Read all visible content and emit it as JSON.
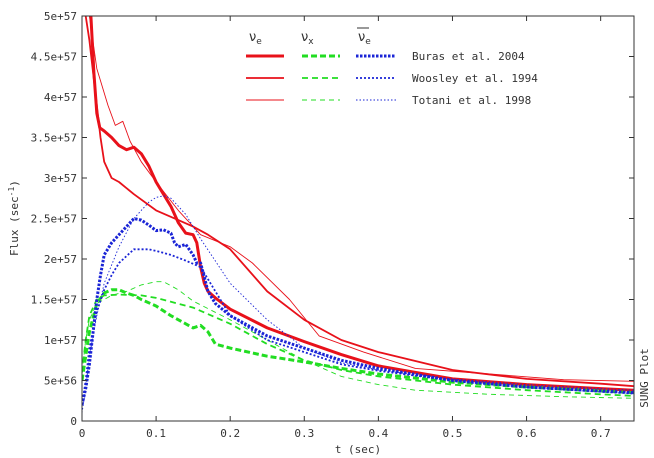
{
  "chart_data": {
    "type": "line",
    "xlabel": "t (sec)",
    "ylabel": "Flux (sec^-1)",
    "ylabel_base": "Flux (sec",
    "ylabel_exp": "-1",
    "ylabel_close": ")",
    "xlim": [
      0,
      0.745
    ],
    "ylim": [
      0,
      5e+57
    ],
    "x_ticks": [
      {
        "value": 0,
        "label": "0"
      },
      {
        "value": 0.1,
        "label": "0.1"
      },
      {
        "value": 0.2,
        "label": "0.2"
      },
      {
        "value": 0.3,
        "label": "0.3"
      },
      {
        "value": 0.4,
        "label": "0.4"
      },
      {
        "value": 0.5,
        "label": "0.5"
      },
      {
        "value": 0.6,
        "label": "0.6"
      },
      {
        "value": 0.7,
        "label": "0.7"
      }
    ],
    "y_ticks": [
      {
        "value": 0,
        "label": "0"
      },
      {
        "value": 5e+56,
        "label": "5e+56"
      },
      {
        "value": 1e+57,
        "label": "1e+57"
      },
      {
        "value": 1.5e+57,
        "label": "1.5e+57"
      },
      {
        "value": 2e+57,
        "label": "2e+57"
      },
      {
        "value": 2.5e+57,
        "label": "2.5e+57"
      },
      {
        "value": 3e+57,
        "label": "3e+57"
      },
      {
        "value": 3.5e+57,
        "label": "3.5e+57"
      },
      {
        "value": 4e+57,
        "label": "4e+57"
      },
      {
        "value": 4.5e+57,
        "label": "4.5e+57"
      },
      {
        "value": 5e+57,
        "label": "5e+57"
      }
    ],
    "grid": false,
    "legend_position": "top-right",
    "legend_headers": {
      "nu_e": {
        "symbol": "ν",
        "sub": "e"
      },
      "nu_x": {
        "symbol": "ν",
        "sub": "x"
      },
      "nu_e_bar": {
        "symbol": "ν",
        "sub": "e"
      }
    },
    "legend_rows": [
      {
        "label": "Buras et al. 2004",
        "stroke_width": 3
      },
      {
        "label": "Woosley et al. 1994",
        "stroke_width": 1.8
      },
      {
        "label": "Totani et al. 1998",
        "stroke_width": 0.9
      }
    ],
    "watermark": "SUNG Plot",
    "colors": {
      "nu_e": "#e8111a",
      "nu_x": "#22dd22",
      "nu_e_bar": "#1a24d6",
      "frame": "#333333"
    },
    "series": [
      {
        "name": "Buras et al. 2004",
        "flavor": "nu_e",
        "style": "solid",
        "width": 3,
        "x": [
          0.012,
          0.016,
          0.02,
          0.024,
          0.03,
          0.04,
          0.05,
          0.06,
          0.07,
          0.08,
          0.09,
          0.1,
          0.11,
          0.12,
          0.13,
          0.14,
          0.15,
          0.155,
          0.16,
          0.165,
          0.17,
          0.18,
          0.2,
          0.25,
          0.3,
          0.35,
          0.4,
          0.5,
          0.6,
          0.7,
          0.745
        ],
        "y": [
          5e+57,
          4.3e+57,
          3.8e+57,
          3.62e+57,
          3.58e+57,
          3.5e+57,
          3.4e+57,
          3.35e+57,
          3.38e+57,
          3.3e+57,
          3.15e+57,
          2.95e+57,
          2.8e+57,
          2.65e+57,
          2.45e+57,
          2.32e+57,
          2.3e+57,
          2.2e+57,
          1.9e+57,
          1.7e+57,
          1.6e+57,
          1.52e+57,
          1.38e+57,
          1.15e+57,
          9.8e+56,
          8.2e+56,
          6.8e+56,
          5.2e+56,
          4.5e+56,
          4e+56,
          3.8e+56
        ]
      },
      {
        "name": "Woosley et al. 1994",
        "flavor": "nu_e",
        "style": "solid",
        "width": 1.8,
        "x": [
          0.005,
          0.01,
          0.015,
          0.02,
          0.025,
          0.03,
          0.04,
          0.05,
          0.07,
          0.1,
          0.13,
          0.15,
          0.17,
          0.2,
          0.25,
          0.3,
          0.35,
          0.4,
          0.5,
          0.6,
          0.7,
          0.745
        ],
        "y": [
          5e+57,
          4.7e+57,
          4.3e+57,
          3.9e+57,
          3.5e+57,
          3.2e+57,
          3e+57,
          2.95e+57,
          2.8e+57,
          2.6e+57,
          2.48e+57,
          2.4e+57,
          2.3e+57,
          2.12e+57,
          1.6e+57,
          1.25e+57,
          1e+57,
          8.5e+56,
          6.3e+56,
          5.2e+56,
          4.6e+56,
          4.3e+56
        ]
      },
      {
        "name": "Totani et al. 1998",
        "flavor": "nu_e",
        "style": "solid",
        "width": 0.9,
        "x": [
          0.01,
          0.02,
          0.025,
          0.035,
          0.045,
          0.055,
          0.065,
          0.08,
          0.1,
          0.13,
          0.16,
          0.2,
          0.23,
          0.28,
          0.32,
          0.38,
          0.45,
          0.55,
          0.65,
          0.745
        ],
        "y": [
          5e+57,
          4.35e+57,
          4.2e+57,
          3.9e+57,
          3.65e+57,
          3.7e+57,
          3.45e+57,
          3.2e+57,
          2.95e+57,
          2.6e+57,
          2.3e+57,
          2.15e+57,
          1.95e+57,
          1.5e+57,
          1.05e+57,
          8.5e+56,
          6.5e+56,
          5.8e+56,
          5.1e+56,
          4.9e+56
        ]
      },
      {
        "name": "Buras et al. 2004",
        "flavor": "nu_x",
        "style": "dashed",
        "width": 3,
        "x": [
          0,
          0.005,
          0.01,
          0.02,
          0.03,
          0.04,
          0.05,
          0.06,
          0.07,
          0.08,
          0.1,
          0.12,
          0.14,
          0.15,
          0.16,
          0.17,
          0.18,
          0.2,
          0.25,
          0.3,
          0.35,
          0.4,
          0.5,
          0.6,
          0.7,
          0.745
        ],
        "y": [
          5e+56,
          8e+56,
          1.1e+57,
          1.45e+57,
          1.58e+57,
          1.62e+57,
          1.62e+57,
          1.58e+57,
          1.55e+57,
          1.5e+57,
          1.42e+57,
          1.3e+57,
          1.2e+57,
          1.15e+57,
          1.18e+57,
          1.1e+57,
          9.5e+56,
          9e+56,
          8e+56,
          7.3e+56,
          6.5e+56,
          5.8e+56,
          4.8e+56,
          4.2e+56,
          3.7e+56,
          3.5e+56
        ]
      },
      {
        "name": "Woosley et al. 1994",
        "flavor": "nu_x",
        "style": "dashed",
        "width": 1.8,
        "x": [
          0,
          0.005,
          0.01,
          0.02,
          0.03,
          0.05,
          0.08,
          0.1,
          0.15,
          0.2,
          0.25,
          0.3,
          0.35,
          0.4,
          0.5,
          0.6,
          0.7,
          0.745
        ],
        "y": [
          6e+56,
          1e+57,
          1.3e+57,
          1.5e+57,
          1.55e+57,
          1.56e+57,
          1.55e+57,
          1.52e+57,
          1.4e+57,
          1.2e+57,
          9.5e+56,
          7.5e+56,
          6.3e+56,
          5.5e+56,
          4.5e+56,
          3.8e+56,
          3.3e+56,
          3.1e+56
        ]
      },
      {
        "name": "Totani et al. 1998",
        "flavor": "nu_x",
        "style": "dashed",
        "width": 0.9,
        "x": [
          0,
          0.005,
          0.01,
          0.02,
          0.04,
          0.06,
          0.08,
          0.1,
          0.11,
          0.13,
          0.15,
          0.2,
          0.25,
          0.3,
          0.35,
          0.4,
          0.45,
          0.55,
          0.65,
          0.745
        ],
        "y": [
          6e+56,
          1e+57,
          1.25e+57,
          1.45e+57,
          1.55e+57,
          1.6e+57,
          1.68e+57,
          1.72e+57,
          1.72e+57,
          1.62e+57,
          1.48e+57,
          1.25e+57,
          1e+57,
          7.5e+56,
          5.5e+56,
          4.5e+56,
          3.8e+56,
          3.3e+56,
          3e+56,
          2.8e+56
        ]
      },
      {
        "name": "Buras et al. 2004",
        "flavor": "nu_e_bar",
        "style": "dotted",
        "width": 3,
        "x": [
          0,
          0.005,
          0.01,
          0.015,
          0.02,
          0.025,
          0.03,
          0.04,
          0.05,
          0.06,
          0.07,
          0.08,
          0.09,
          0.1,
          0.11,
          0.12,
          0.125,
          0.13,
          0.14,
          0.15,
          0.155,
          0.16,
          0.17,
          0.18,
          0.2,
          0.25,
          0.3,
          0.35,
          0.4,
          0.5,
          0.6,
          0.7,
          0.745
        ],
        "y": [
          2e+56,
          4e+56,
          7e+56,
          1.1e+57,
          1.5e+57,
          1.8e+57,
          2.05e+57,
          2.2e+57,
          2.3e+57,
          2.4e+57,
          2.5e+57,
          2.48e+57,
          2.42e+57,
          2.35e+57,
          2.36e+57,
          2.32e+57,
          2.2e+57,
          2.15e+57,
          2.18e+57,
          2.05e+57,
          1.95e+57,
          1.95e+57,
          1.6e+57,
          1.45e+57,
          1.3e+57,
          1.05e+57,
          9e+56,
          7.5e+56,
          6.5e+56,
          5e+56,
          4.2e+56,
          3.7e+56,
          3.5e+56
        ]
      },
      {
        "name": "Woosley et al. 1994",
        "flavor": "nu_e_bar",
        "style": "dotted",
        "width": 1.8,
        "x": [
          0,
          0.005,
          0.01,
          0.02,
          0.03,
          0.04,
          0.05,
          0.07,
          0.09,
          0.1,
          0.12,
          0.14,
          0.16,
          0.18,
          0.2,
          0.25,
          0.3,
          0.35,
          0.4,
          0.5,
          0.6,
          0.7,
          0.745
        ],
        "y": [
          2e+56,
          5e+56,
          9e+56,
          1.35e+57,
          1.62e+57,
          1.8e+57,
          1.95e+57,
          2.12e+57,
          2.12e+57,
          2.1e+57,
          2.05e+57,
          1.98e+57,
          1.9e+57,
          1.6e+57,
          1.3e+57,
          1e+57,
          8.5e+56,
          7e+56,
          6.2e+56,
          5e+56,
          4.2e+56,
          3.6e+56,
          3.4e+56
        ]
      },
      {
        "name": "Totani et al. 1998",
        "flavor": "nu_e_bar",
        "style": "dotted",
        "width": 0.9,
        "x": [
          0,
          0.005,
          0.01,
          0.02,
          0.03,
          0.05,
          0.07,
          0.09,
          0.1,
          0.11,
          0.12,
          0.14,
          0.16,
          0.2,
          0.25,
          0.3,
          0.35,
          0.4,
          0.5,
          0.6,
          0.7,
          0.745
        ],
        "y": [
          1e+56,
          4e+56,
          8e+56,
          1.3e+57,
          1.7e+57,
          2.15e+57,
          2.5e+57,
          2.7e+57,
          2.76e+57,
          2.78e+57,
          2.75e+57,
          2.55e+57,
          2.25e+57,
          1.7e+57,
          1.25e+57,
          9e+56,
          7.2e+56,
          6.3e+56,
          5.2e+56,
          4.5e+56,
          4e+56,
          3.8e+56
        ]
      }
    ]
  }
}
